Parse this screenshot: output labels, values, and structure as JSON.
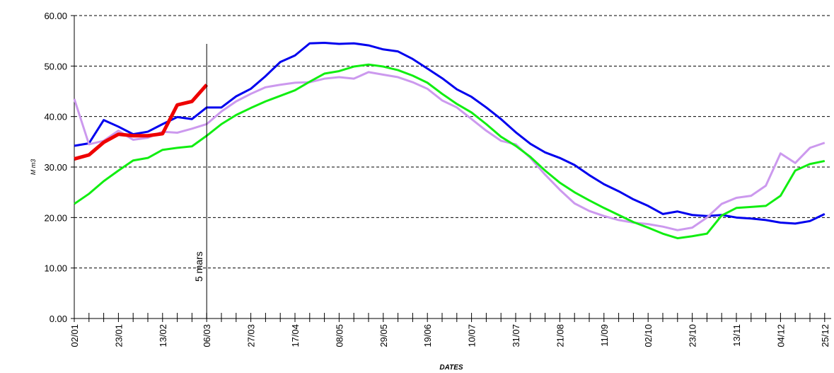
{
  "chart_data": {
    "type": "line",
    "y_label": "M m3",
    "x_label": "DATES",
    "categories": [
      "02/01",
      null,
      null,
      "23/01",
      null,
      null,
      "13/02",
      null,
      null,
      "06/03",
      null,
      null,
      "27/03",
      null,
      null,
      "17/04",
      null,
      null,
      "08/05",
      null,
      null,
      "29/05",
      null,
      null,
      "19/06",
      null,
      null,
      "10/07",
      null,
      null,
      "31/07",
      null,
      null,
      "21/08",
      null,
      null,
      "11/09",
      null,
      null,
      "02/10",
      null,
      null,
      "23/10",
      null,
      null,
      "13/11",
      null,
      null,
      "04/12",
      null,
      null,
      "25/12"
    ],
    "series": [
      {
        "color": "#0000ee",
        "width": 3,
        "values": [
          34.2,
          34.7,
          39.3,
          38.0,
          36.5,
          37.0,
          38.5,
          39.9,
          39.5,
          41.8,
          41.8,
          44.0,
          45.5,
          48.0,
          50.8,
          52.1,
          54.5,
          54.6,
          54.4,
          54.5,
          54.1,
          53.3,
          52.9,
          51.4,
          49.5,
          47.6,
          45.4,
          43.9,
          41.8,
          39.5,
          36.9,
          34.6,
          32.9,
          31.8,
          30.4,
          28.4,
          26.6,
          25.2,
          23.6,
          22.3,
          20.7,
          21.2,
          20.5,
          20.3,
          20.5,
          20.0,
          19.8,
          19.5,
          19.0,
          18.8,
          19.3,
          20.7
        ]
      },
      {
        "color": "#cc99ee",
        "width": 3,
        "values": [
          43.5,
          34.5,
          35.2,
          37.2,
          35.4,
          35.8,
          37.0,
          36.8,
          37.6,
          38.5,
          41.0,
          43.0,
          44.5,
          45.8,
          46.3,
          46.7,
          46.8,
          47.5,
          47.8,
          47.5,
          48.8,
          48.3,
          47.8,
          46.8,
          45.5,
          43.2,
          41.8,
          39.5,
          37.2,
          35.2,
          34.5,
          31.8,
          28.5,
          25.5,
          22.8,
          21.3,
          20.3,
          19.5,
          19.0,
          18.7,
          18.2,
          17.5,
          18.0,
          20.0,
          22.7,
          23.9,
          24.3,
          26.3,
          32.7,
          30.8,
          33.8,
          34.8
        ]
      },
      {
        "color": "#11ee11",
        "width": 3,
        "values": [
          22.7,
          24.7,
          27.2,
          29.3,
          31.3,
          31.8,
          33.4,
          33.8,
          34.1,
          36.2,
          38.5,
          40.3,
          41.7,
          43.0,
          44.1,
          45.2,
          46.9,
          48.5,
          49.0,
          49.9,
          50.3,
          49.9,
          49.2,
          48.1,
          46.7,
          44.5,
          42.5,
          40.8,
          38.5,
          36.0,
          34.2,
          32.0,
          29.3,
          26.9,
          25.0,
          23.4,
          21.9,
          20.5,
          19.1,
          18.0,
          16.8,
          15.9,
          16.3,
          16.8,
          20.4,
          21.9,
          22.1,
          22.3,
          24.3,
          29.3,
          30.6,
          31.2
        ]
      },
      {
        "color": "#ee0000",
        "width": 5,
        "values": [
          31.6,
          32.4,
          34.9,
          36.5,
          36.2,
          36.2,
          36.6,
          42.3,
          43.0,
          46.3,
          null,
          null,
          null,
          null,
          null,
          null,
          null,
          null,
          null,
          null,
          null,
          null,
          null,
          null,
          null,
          null,
          null,
          null,
          null,
          null,
          null,
          null,
          null,
          null,
          null,
          null,
          null,
          null,
          null,
          null,
          null,
          null,
          null,
          null,
          null,
          null,
          null,
          null,
          null,
          null,
          null,
          null
        ]
      }
    ],
    "annotation": {
      "text": "5 mars",
      "x": "06/03"
    },
    "ylim": [
      0,
      60
    ],
    "yticks": [
      {
        "value": 0,
        "label": "0.00"
      },
      {
        "value": 10,
        "label": "10.00"
      },
      {
        "value": 20,
        "label": "20.00"
      },
      {
        "value": 30,
        "label": "30.00"
      },
      {
        "value": 40,
        "label": "40.00"
      },
      {
        "value": 50,
        "label": "50.00"
      },
      {
        "value": 60,
        "label": "60.00"
      }
    ],
    "grid": true
  }
}
